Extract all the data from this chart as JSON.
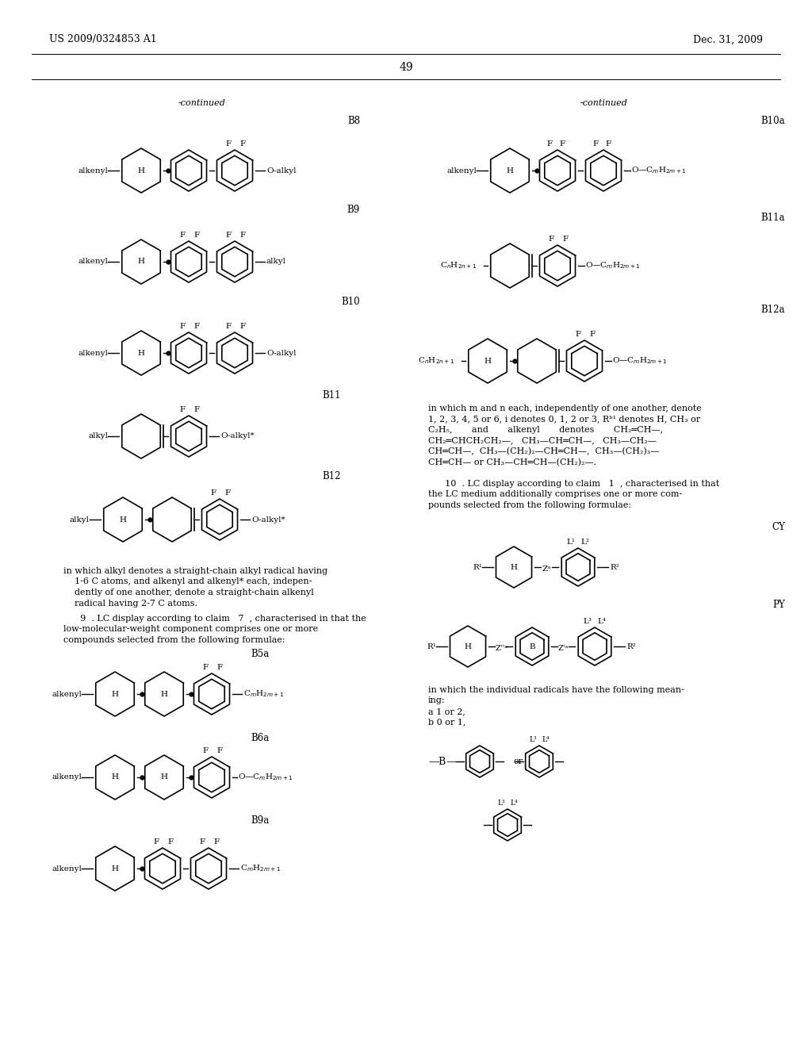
{
  "title_left": "US 2009/0324853 A1",
  "title_right": "Dec. 31, 2009",
  "page_num": "49",
  "bg_color": "#ffffff",
  "text_color": "#000000"
}
